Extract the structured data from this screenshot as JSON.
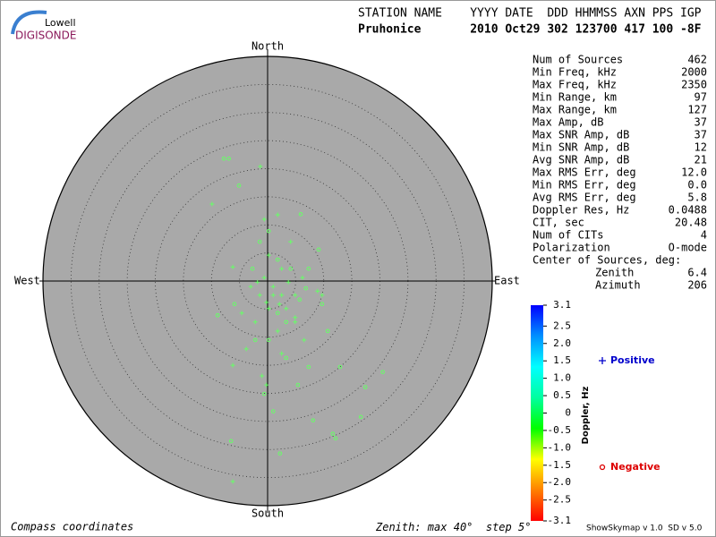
{
  "header": {
    "logo": [
      "Lowell",
      "DIGISONDE"
    ],
    "line1": "STATION NAME    YYYY DATE  DDD HHMMSS AXN PPS IGP",
    "line2": "Pruhonice       2010 Oct29 302 123700 417 100 -8F"
  },
  "chart_data": {
    "type": "scatter",
    "labels": {
      "north": "North",
      "south": "South",
      "east": "East",
      "west": "West"
    },
    "rlim": [
      0,
      40
    ],
    "rstep": 5,
    "rticks": [
      5,
      10,
      15,
      20,
      25,
      30,
      35
    ],
    "point_color": "#66ff66",
    "series": [
      {
        "name": "Positive",
        "marker": "+",
        "color": "#0000cc",
        "x": [
          -1.3,
          -9.9,
          -6.2,
          -6.2,
          -6.2,
          1.8,
          -0.6,
          1.0,
          2.5,
          4.9,
          0.2,
          -1.4,
          -3.0,
          -0.6,
          3.3,
          1.8,
          4.9,
          8.9,
          9.7,
          -0.2,
          -1.0,
          4.9,
          2.5,
          4.1,
          0.2,
          -2.2,
          -3.8,
          6.5,
          2.5,
          -4.6,
          1.0,
          2.1,
          -0.2,
          -1.8,
          3.7,
          6.2
        ],
        "y": [
          20.4,
          13.7,
          2.5,
          -15.0,
          -35.7,
          11.8,
          11.0,
          -1.0,
          -2.5,
          -2.5,
          -4.9,
          -2.5,
          -1.0,
          0.6,
          -4.9,
          -8.9,
          -6.5,
          -1.8,
          -2.5,
          -18.5,
          -16.9,
          -7.3,
          2.2,
          7.0,
          4.6,
          -7.3,
          -12.1,
          -10.5,
          -12.9,
          -5.7,
          -2.5,
          -4.1,
          -3.8,
          -0.2,
          -0.2,
          0.6
        ]
      },
      {
        "name": "Negative",
        "marker": "o",
        "color": "#dd0000",
        "x": [
          -7.8,
          -6.9,
          -5.1,
          5.9,
          9.1,
          7.3,
          6.8,
          5.7,
          9.7,
          10.7,
          -8.9,
          -5.9,
          -2.7,
          -1.4,
          17.4,
          20.5,
          16.6,
          11.6,
          12.1,
          8.1,
          2.2,
          -6.5,
          5.4,
          1.0,
          -0.6,
          3.3,
          7.3,
          12.9,
          -2.2,
          1.8,
          3.3,
          0.2,
          4.1,
          1.8,
          0.2
        ],
        "y": [
          21.8,
          21.8,
          17.0,
          11.9,
          5.6,
          2.2,
          -1.3,
          -3.3,
          -4.1,
          -8.9,
          -6.1,
          -4.1,
          2.2,
          7.0,
          -18.9,
          -16.2,
          -24.2,
          -27.2,
          -28.0,
          -24.8,
          -30.7,
          -28.5,
          -18.5,
          -23.2,
          -20.1,
          -13.7,
          -15.3,
          -15.3,
          -10.5,
          -5.7,
          -7.3,
          -10.5,
          2.2,
          3.8,
          8.9
        ]
      }
    ],
    "colorbar": {
      "label": "Doppler, Hz",
      "clim": [
        -3.1,
        3.1
      ],
      "colors": [
        "#ff0000",
        "#ff8000",
        "#ffff00",
        "#00ff00",
        "#00ffa0",
        "#00ffff",
        "#0090ff",
        "#0000ff"
      ],
      "ticks": [
        3.1,
        2.5,
        {
          "value": 2,
          "label": "2.0"
        },
        1.5,
        {
          "value": 1,
          "label": "1.0"
        },
        0.5,
        0,
        -0.5,
        {
          "value": -1,
          "label": "-1.0"
        },
        -1.5,
        {
          "value": -2,
          "label": "-2.0"
        },
        -2.5,
        -3.1
      ]
    }
  },
  "stats": {
    "rows": [
      [
        "Num of Sources",
        "462"
      ],
      [
        "Min Freq, kHz",
        "2000"
      ],
      [
        "Max Freq, kHz",
        "2350"
      ],
      [
        "Min Range, km",
        "97"
      ],
      [
        "Max Range, km",
        "127"
      ],
      [
        "Max Amp, dB",
        "37"
      ],
      [
        "Max SNR Amp, dB",
        "37"
      ],
      [
        "Min SNR Amp, dB",
        "12"
      ],
      [
        "Avg SNR Amp, dB",
        "21"
      ],
      [
        "Max RMS Err, deg",
        "12.0"
      ],
      [
        "Min RMS Err, deg",
        "0.0"
      ],
      [
        "Avg RMS Err, deg",
        "5.8"
      ],
      [
        "Doppler Res, Hz",
        "0.0488"
      ],
      [
        "CIT, sec",
        "20.48"
      ],
      [
        "Num of CITs",
        "4"
      ],
      [
        "Polarization",
        "O-mode"
      ]
    ],
    "center": {
      "title": "Center of Sources, deg:",
      "rows": [
        [
          "Zenith",
          "6.4"
        ],
        [
          "Azimuth",
          "206"
        ]
      ]
    }
  },
  "footer": {
    "coords": "Compass coordinates",
    "zenith_prefix": "Zenith: max",
    "degree": "°",
    "step": "step",
    "version": "ShowSkymap v 1.0  SD v 5.0"
  }
}
